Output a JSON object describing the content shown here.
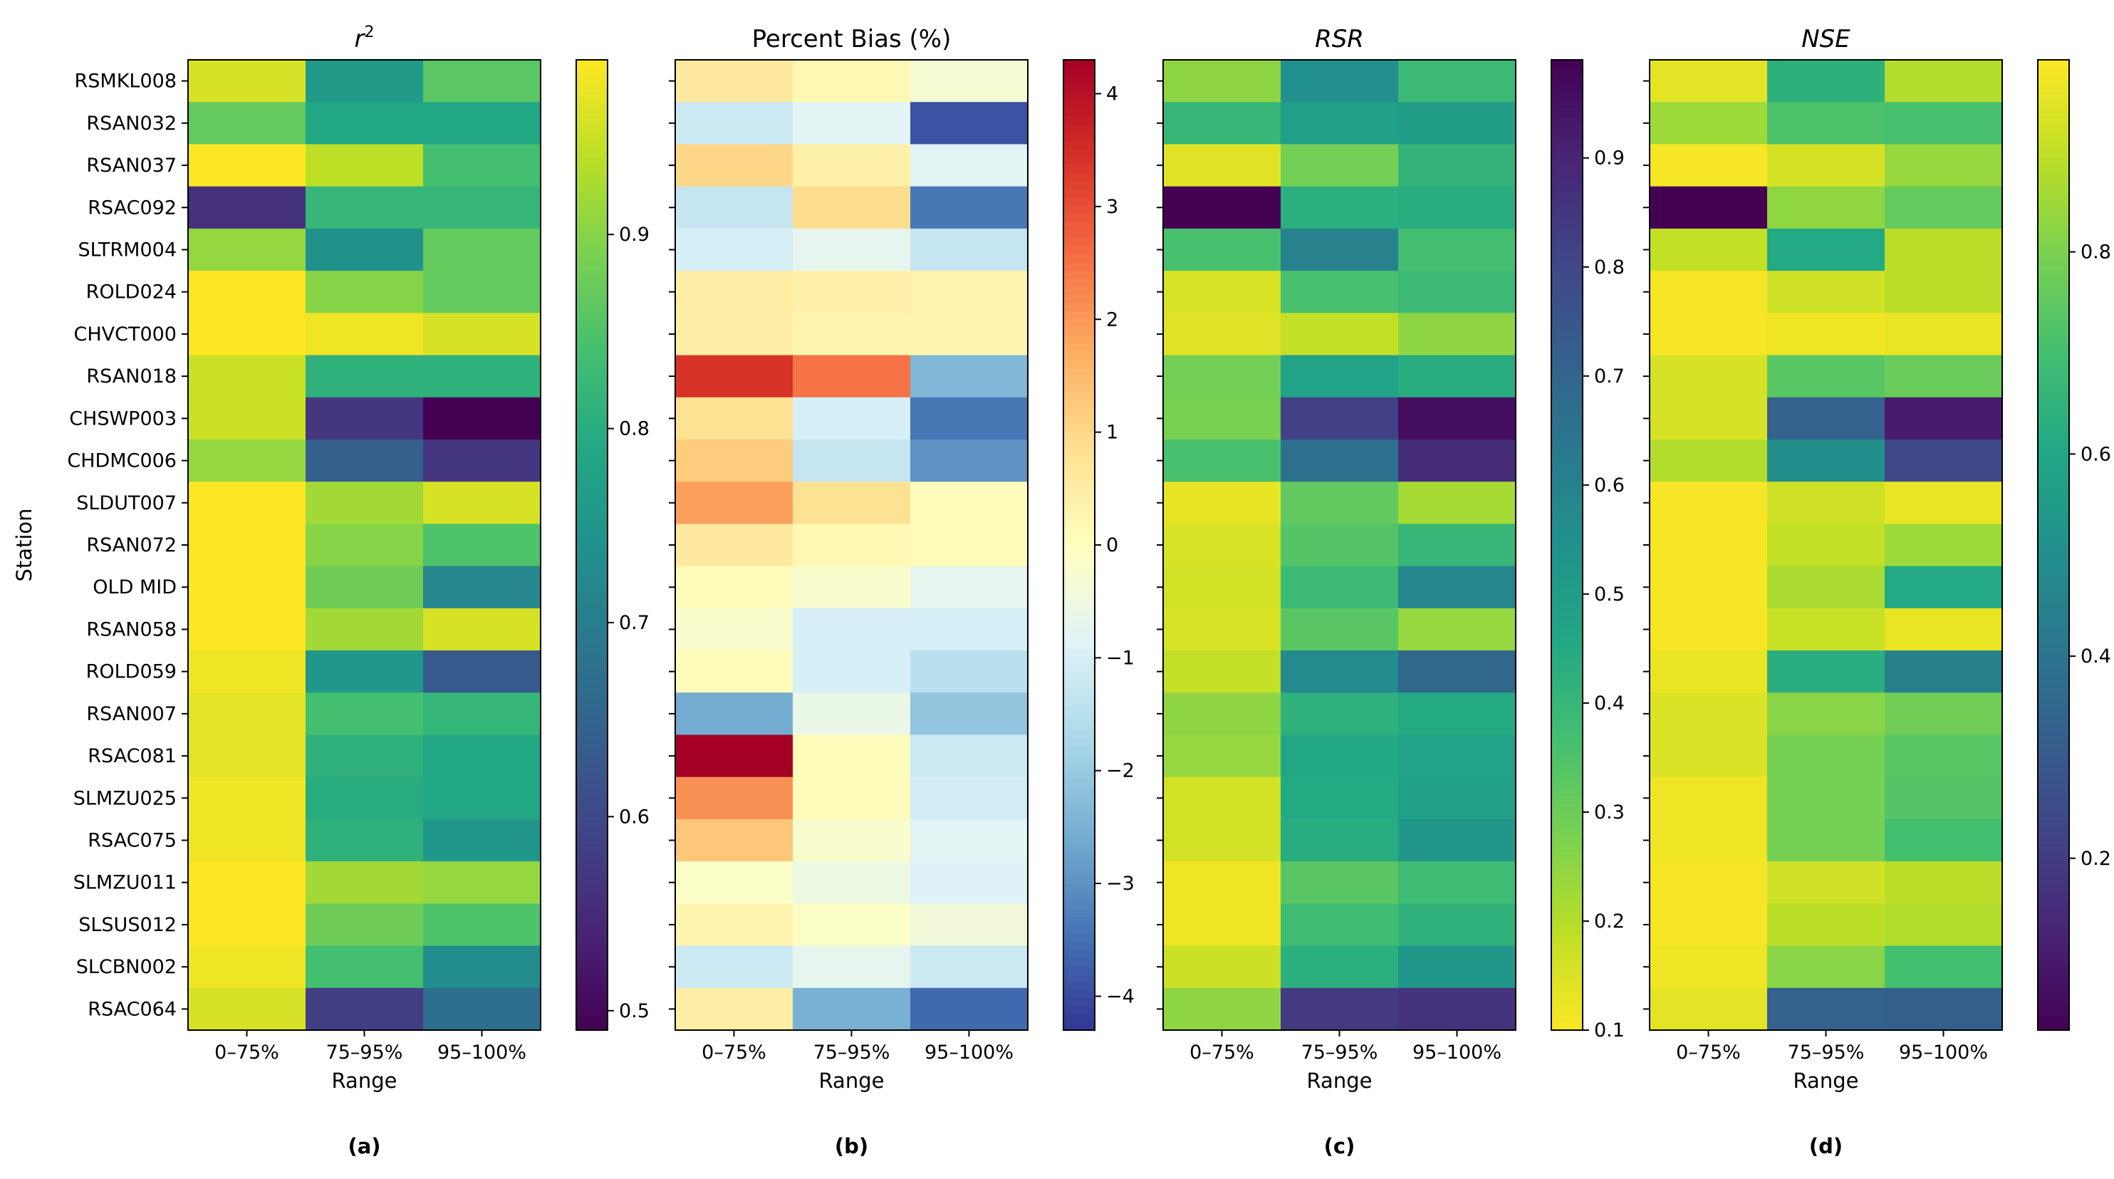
{
  "chart_data": {
    "type": "heatmap",
    "stations": [
      "RSMKL008",
      "RSAN032",
      "RSAN037",
      "RSAC092",
      "SLTRM004",
      "ROLD024",
      "CHVCT000",
      "RSAN018",
      "CHSWP003",
      "CHDMC006",
      "SLDUT007",
      "RSAN072",
      "OLD MID",
      "RSAN058",
      "ROLD059",
      "RSAN007",
      "RSAC081",
      "SLMZU025",
      "RSAC075",
      "SLMZU011",
      "SLSUS012",
      "SLCBN002",
      "RSAC064"
    ],
    "ranges": [
      "0–75%",
      "75–95%",
      "95–100%"
    ],
    "ylabel": "Station",
    "xlabel": "Range",
    "panels": [
      {
        "letter": "(a)",
        "title_base": "r",
        "title_sup": "2",
        "title_style": "math-superscript",
        "colormap": "viridis",
        "vmin": 0.49,
        "vmax": 0.99,
        "colorbar_ticks": [
          "0.5",
          "0.6",
          "0.7",
          "0.8",
          "0.9"
        ],
        "colorbar_tick_values": [
          0.5,
          0.6,
          0.7,
          0.8,
          0.9
        ],
        "values": [
          [
            0.96,
            0.76,
            0.86
          ],
          [
            0.87,
            0.79,
            0.79
          ],
          [
            0.99,
            0.94,
            0.84
          ],
          [
            0.56,
            0.82,
            0.82
          ],
          [
            0.91,
            0.74,
            0.87
          ],
          [
            0.99,
            0.9,
            0.87
          ],
          [
            0.99,
            0.98,
            0.96
          ],
          [
            0.95,
            0.81,
            0.81
          ],
          [
            0.95,
            0.57,
            0.49
          ],
          [
            0.91,
            0.64,
            0.57
          ],
          [
            0.99,
            0.92,
            0.96
          ],
          [
            0.99,
            0.9,
            0.85
          ],
          [
            0.99,
            0.88,
            0.72
          ],
          [
            0.99,
            0.92,
            0.96
          ],
          [
            0.98,
            0.75,
            0.63
          ],
          [
            0.97,
            0.84,
            0.82
          ],
          [
            0.97,
            0.81,
            0.79
          ],
          [
            0.98,
            0.8,
            0.79
          ],
          [
            0.98,
            0.81,
            0.75
          ],
          [
            0.99,
            0.92,
            0.91
          ],
          [
            0.99,
            0.88,
            0.85
          ],
          [
            0.98,
            0.84,
            0.73
          ],
          [
            0.96,
            0.58,
            0.67
          ]
        ]
      },
      {
        "letter": "(b)",
        "title": "Percent Bias (%)",
        "title_style": "plain",
        "colormap": "RdYlBu_r",
        "vmin": -4.3,
        "vmax": 4.3,
        "colorbar_ticks": [
          "−4",
          "−3",
          "−2",
          "−1",
          "0",
          "1",
          "2",
          "3",
          "4"
        ],
        "colorbar_tick_values": [
          -4,
          -3,
          -2,
          -1,
          0,
          1,
          2,
          3,
          4
        ],
        "values": [
          [
            0.6,
            0.2,
            -0.3
          ],
          [
            -1.2,
            -0.8,
            -3.9
          ],
          [
            1.0,
            0.4,
            -0.8
          ],
          [
            -1.3,
            0.9,
            -3.4
          ],
          [
            -1.0,
            -0.7,
            -1.3
          ],
          [
            0.5,
            0.4,
            0.3
          ],
          [
            0.5,
            0.3,
            0.3
          ],
          [
            3.4,
            2.5,
            -2.4
          ],
          [
            0.8,
            -1.0,
            -3.4
          ],
          [
            1.2,
            -1.3,
            -3.0
          ],
          [
            1.9,
            0.8,
            0.1
          ],
          [
            0.6,
            0.2,
            0.1
          ],
          [
            0.1,
            -0.2,
            -0.7
          ],
          [
            -0.2,
            -1.0,
            -1.0
          ],
          [
            0.1,
            -1.0,
            -1.5
          ],
          [
            -2.6,
            -0.6,
            -2.1
          ],
          [
            4.3,
            0.1,
            -1.2
          ],
          [
            2.1,
            0.1,
            -1.1
          ],
          [
            1.3,
            -0.2,
            -0.8
          ],
          [
            -0.1,
            -0.5,
            -0.9
          ],
          [
            0.3,
            -0.1,
            -0.4
          ],
          [
            -1.2,
            -0.7,
            -1.2
          ],
          [
            0.5,
            -2.5,
            -3.6
          ]
        ]
      },
      {
        "letter": "(c)",
        "title": "RSR",
        "title_style": "italic",
        "colormap": "viridis_r",
        "vmin": 0.1,
        "vmax": 0.99,
        "colorbar_ticks": [
          "0.1",
          "0.2",
          "0.3",
          "0.4",
          "0.5",
          "0.6",
          "0.7",
          "0.8",
          "0.9"
        ],
        "colorbar_tick_values": [
          0.1,
          0.2,
          0.3,
          0.4,
          0.5,
          0.6,
          0.7,
          0.8,
          0.9
        ],
        "values": [
          [
            0.25,
            0.55,
            0.39
          ],
          [
            0.4,
            0.49,
            0.5
          ],
          [
            0.14,
            0.29,
            0.41
          ],
          [
            0.99,
            0.43,
            0.44
          ],
          [
            0.36,
            0.6,
            0.37
          ],
          [
            0.15,
            0.36,
            0.39
          ],
          [
            0.14,
            0.18,
            0.25
          ],
          [
            0.29,
            0.48,
            0.44
          ],
          [
            0.28,
            0.82,
            0.96
          ],
          [
            0.36,
            0.66,
            0.88
          ],
          [
            0.13,
            0.32,
            0.22
          ],
          [
            0.15,
            0.34,
            0.4
          ],
          [
            0.16,
            0.39,
            0.58
          ],
          [
            0.15,
            0.33,
            0.24
          ],
          [
            0.18,
            0.57,
            0.69
          ],
          [
            0.25,
            0.42,
            0.45
          ],
          [
            0.24,
            0.46,
            0.48
          ],
          [
            0.16,
            0.45,
            0.49
          ],
          [
            0.16,
            0.44,
            0.52
          ],
          [
            0.12,
            0.33,
            0.38
          ],
          [
            0.12,
            0.38,
            0.42
          ],
          [
            0.17,
            0.43,
            0.52
          ],
          [
            0.25,
            0.84,
            0.86
          ]
        ]
      },
      {
        "letter": "(d)",
        "title": "NSE",
        "title_style": "italic",
        "colormap": "viridis",
        "vmin": 0.03,
        "vmax": 0.99,
        "colorbar_ticks": [
          "0.2",
          "0.4",
          "0.6",
          "0.8"
        ],
        "colorbar_tick_values": [
          0.2,
          0.4,
          0.6,
          0.8
        ],
        "values": [
          [
            0.95,
            0.64,
            0.88
          ],
          [
            0.85,
            0.72,
            0.71
          ],
          [
            0.98,
            0.93,
            0.84
          ],
          [
            0.03,
            0.83,
            0.76
          ],
          [
            0.9,
            0.61,
            0.89
          ],
          [
            0.98,
            0.92,
            0.89
          ],
          [
            0.98,
            0.97,
            0.96
          ],
          [
            0.93,
            0.74,
            0.77
          ],
          [
            0.93,
            0.33,
            0.1
          ],
          [
            0.88,
            0.5,
            0.24
          ],
          [
            0.98,
            0.92,
            0.96
          ],
          [
            0.98,
            0.9,
            0.85
          ],
          [
            0.98,
            0.87,
            0.61
          ],
          [
            0.98,
            0.91,
            0.96
          ],
          [
            0.96,
            0.63,
            0.45
          ],
          [
            0.94,
            0.82,
            0.78
          ],
          [
            0.94,
            0.79,
            0.74
          ],
          [
            0.97,
            0.79,
            0.73
          ],
          [
            0.97,
            0.79,
            0.7
          ],
          [
            0.98,
            0.92,
            0.89
          ],
          [
            0.98,
            0.89,
            0.88
          ],
          [
            0.97,
            0.82,
            0.7
          ],
          [
            0.95,
            0.33,
            0.32
          ]
        ]
      }
    ]
  }
}
